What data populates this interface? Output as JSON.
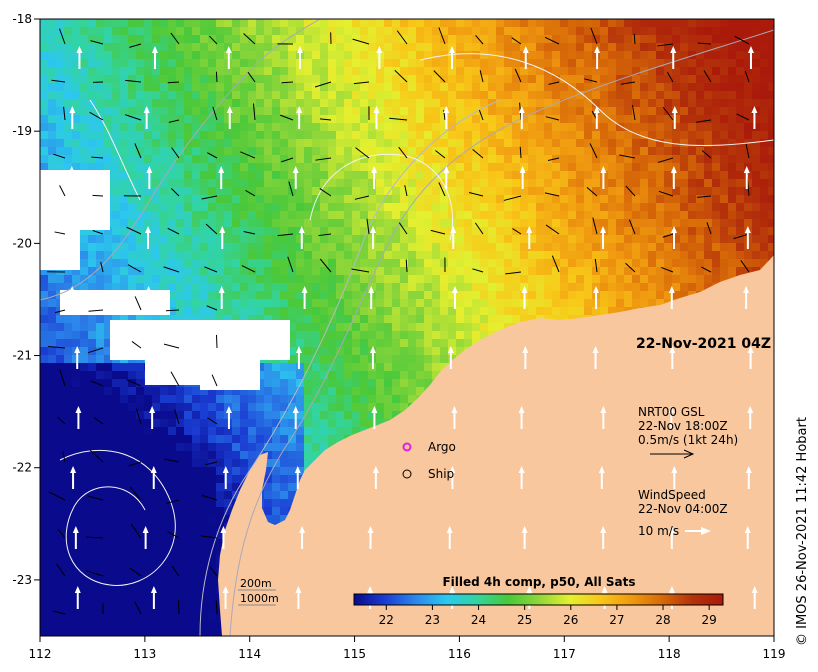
{
  "map": {
    "lon_ticks": [
      "112",
      "113",
      "114",
      "115",
      "116",
      "117",
      "118",
      "119"
    ],
    "lat_ticks": [
      "-18",
      "-19",
      "-20",
      "-21",
      "-22",
      "-23"
    ],
    "lon_range": [
      112,
      119
    ],
    "lat_range": [
      -23.5,
      -18
    ],
    "timestamp": "22-Nov-2021 04Z",
    "credit": "© IMOS 26-Nov-2021 11:42 Hobart",
    "bathymetry_legend": [
      "200m",
      "1000m"
    ],
    "land_color": "#f9c79e",
    "no_data_color": "#ffffff"
  },
  "legend": {
    "argo_label": "Argo",
    "ship_label": "Ship",
    "argo_color": "#e020e0",
    "current_source": "NRT00 GSL",
    "current_time": "22-Nov 18:00Z",
    "current_scale": "0.5m/s (1kt 24h)",
    "wind_title": "WindSpeed",
    "wind_time": "22-Nov 04:00Z",
    "wind_scale": "10 m/s"
  },
  "colorbar": {
    "title": "Filled 4h comp, p50, All Sats",
    "ticks": [
      "22",
      "23",
      "24",
      "25",
      "26",
      "27",
      "28",
      "29"
    ],
    "range": [
      21.3,
      29.3
    ],
    "colors": [
      "#0a0a8c",
      "#1a3cd2",
      "#2c86ea",
      "#2cc8ee",
      "#32d4a0",
      "#48c83a",
      "#8ed63a",
      "#e4f030",
      "#f8c818",
      "#f09a10",
      "#d86a08",
      "#b4320a",
      "#aa1a0a"
    ]
  }
}
